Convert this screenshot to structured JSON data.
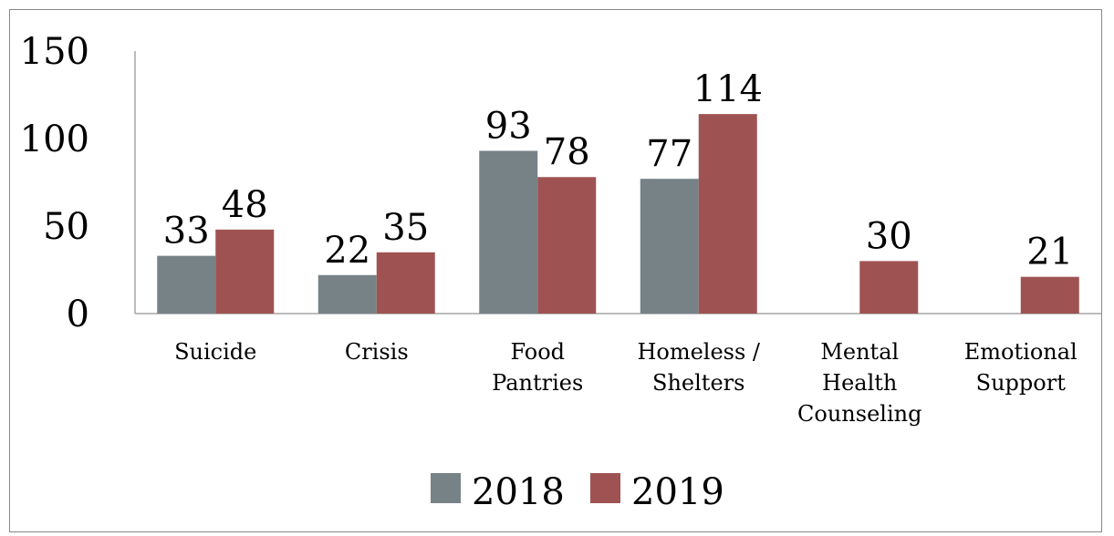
{
  "chart_data": {
    "type": "bar",
    "categories": [
      [
        "Suicide"
      ],
      [
        "Crisis"
      ],
      [
        "Food",
        "Pantries"
      ],
      [
        "Homeless /",
        "Shelters"
      ],
      [
        "Mental",
        "Health",
        "Counseling"
      ],
      [
        "Emotional",
        "Support"
      ]
    ],
    "series": [
      {
        "name": "2018",
        "color": "#778287",
        "values": [
          33,
          22,
          93,
          77,
          null,
          null
        ]
      },
      {
        "name": "2019",
        "color": "#9e5352",
        "values": [
          48,
          35,
          78,
          114,
          30,
          21
        ]
      }
    ],
    "ylim": [
      0,
      150
    ],
    "yticks": [
      0,
      50,
      100,
      150
    ],
    "grid": false,
    "legend_position": "bottom",
    "title": "",
    "xlabel": "",
    "ylabel": ""
  }
}
